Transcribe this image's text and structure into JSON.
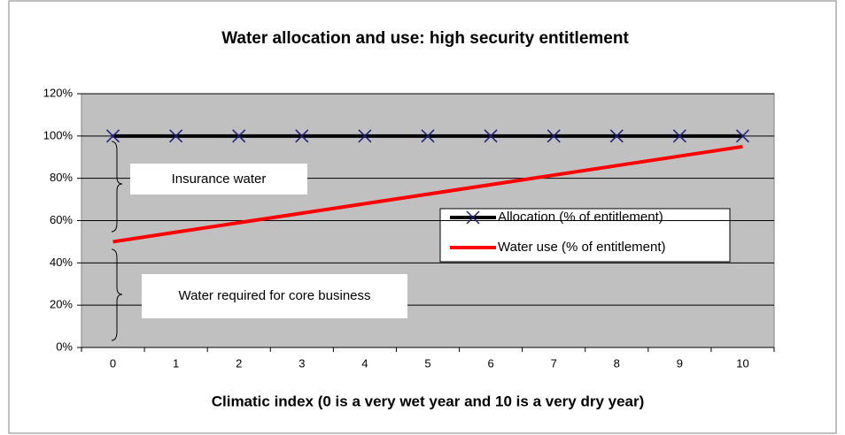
{
  "chart_data": {
    "type": "line",
    "title": "Water allocation and use: high security entitlement",
    "x_label": "Climatic index (0 is a very wet year and 10 is a very dry year)",
    "categories": [
      "0",
      "1",
      "2",
      "3",
      "4",
      "5",
      "6",
      "7",
      "8",
      "9",
      "10"
    ],
    "series": [
      {
        "name": "Allocation (% of entitlement)",
        "color": "#000000",
        "marker_color": "#1f1f7a",
        "marker": "x",
        "values": [
          100,
          100,
          100,
          100,
          100,
          100,
          100,
          100,
          100,
          100,
          100
        ]
      },
      {
        "name": "Water use (% of entitlement)",
        "color": "#ff0000",
        "values": [
          50,
          54.5,
          59,
          63.5,
          68,
          72.5,
          77,
          81.5,
          86,
          90.5,
          95
        ]
      }
    ],
    "ylim": [
      0,
      120
    ],
    "yticks": [
      {
        "value": 0,
        "label": "0%"
      },
      {
        "value": 20,
        "label": "20%"
      },
      {
        "value": 40,
        "label": "40%"
      },
      {
        "value": 60,
        "label": "60%"
      },
      {
        "value": 80,
        "label": "80%"
      },
      {
        "value": 100,
        "label": "100%"
      },
      {
        "value": 120,
        "label": "120%"
      }
    ],
    "grid": true,
    "annotations": [
      "Insurance water",
      "Water required for core business"
    ]
  }
}
